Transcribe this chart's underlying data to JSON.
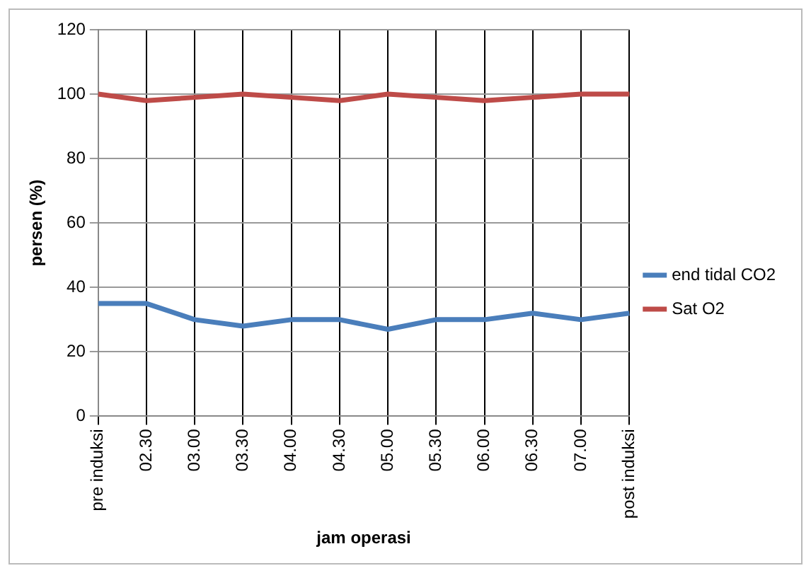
{
  "chart_data": {
    "type": "line",
    "xlabel": "jam operasi",
    "ylabel": "persen (%)",
    "categories": [
      "pre induksi",
      "02.30",
      "03.00",
      "03.30",
      "04.00",
      "04.30",
      "05.00",
      "05.30",
      "06.00",
      "06.30",
      "07.00",
      "post induksi"
    ],
    "series": [
      {
        "name": "end tidal CO2",
        "color": "#4a7ebb",
        "values": [
          35,
          35,
          30,
          28,
          30,
          30,
          27,
          30,
          30,
          32,
          30,
          32
        ]
      },
      {
        "name": "Sat O2",
        "color": "#be4b48",
        "values": [
          100,
          98,
          99,
          100,
          99,
          98,
          100,
          99,
          98,
          99,
          100,
          100
        ]
      }
    ],
    "ylim": [
      0,
      120
    ],
    "yticks": [
      0,
      20,
      40,
      60,
      80,
      100,
      120
    ],
    "grid": true,
    "legend": "right",
    "marker": "none",
    "line_style": "solid"
  }
}
